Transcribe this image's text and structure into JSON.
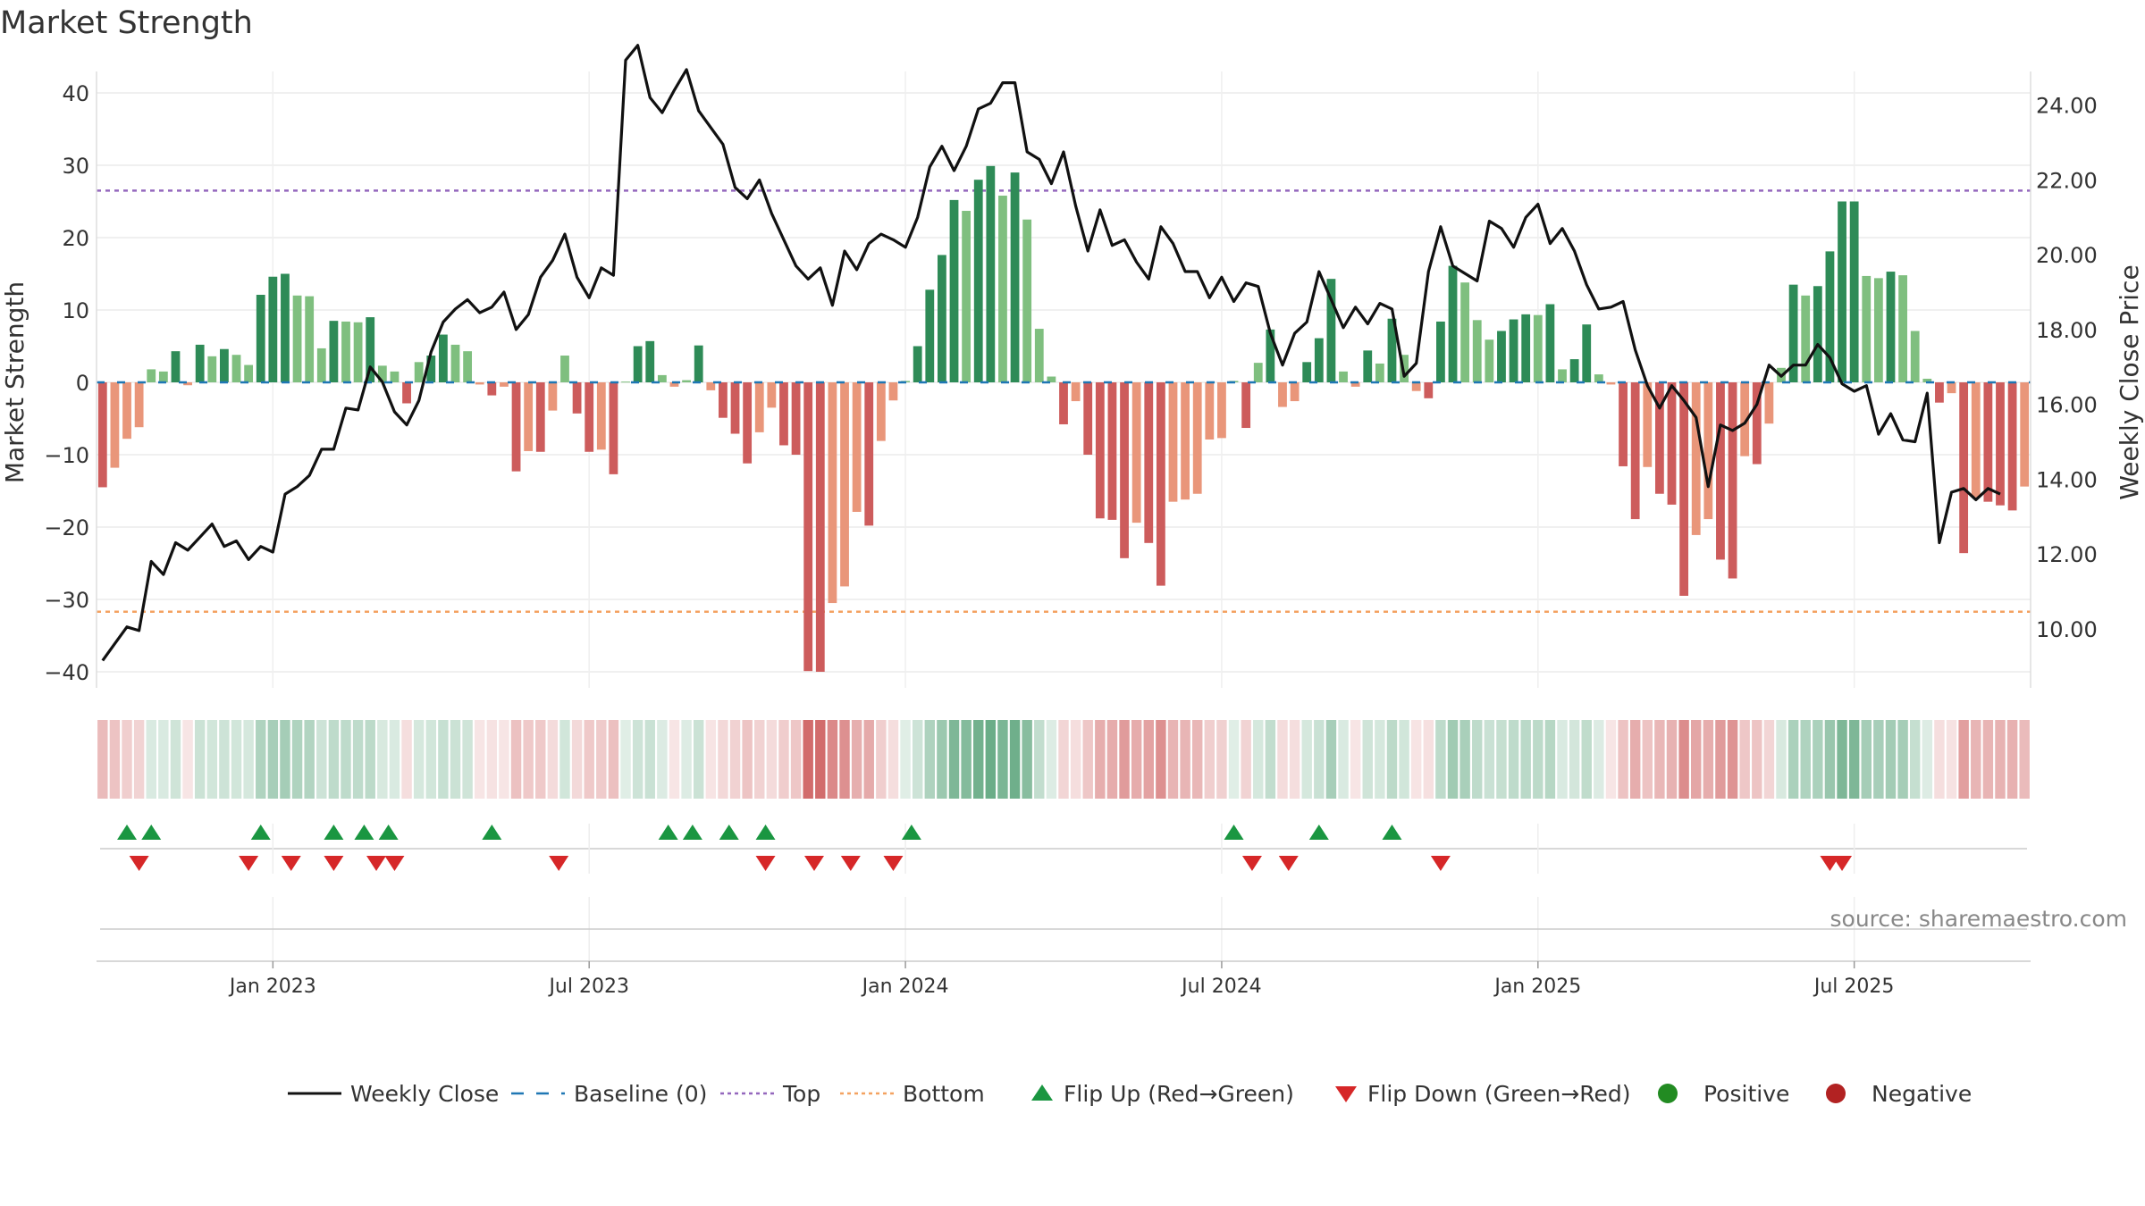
{
  "title": "Market Strength",
  "source": "source: sharemaestro.com",
  "colors": {
    "line": "#111111",
    "baseline": "#1f77b4",
    "top": "#9467bd",
    "bottom": "#f4a261",
    "green_dark": "#2e8b57",
    "green_light": "#7fbf7f",
    "red_dark": "#cd5c5c",
    "red_light": "#e9967a",
    "flip_up": "#1a9641",
    "flip_down": "#d62728",
    "positive": "#228b22",
    "negative": "#b22222"
  },
  "chart_data": {
    "type": "bar+line",
    "title": "Market Strength",
    "ylabel_left": "Market Strength",
    "ylabel_right": "Weekly Close Price",
    "ylim_left": [
      -44,
      44
    ],
    "ylim_right": [
      8.42,
      24.9
    ],
    "yticks_left": [
      "40",
      "30",
      "20",
      "10",
      "0",
      "−10",
      "−20",
      "−30",
      "−40"
    ],
    "yticks_right": [
      "24.00",
      "22.00",
      "20.00",
      "18.00",
      "16.00",
      "14.00",
      "12.00",
      "10.00"
    ],
    "yticks_left_values": [
      40,
      30,
      20,
      10,
      0,
      -10,
      -20,
      -30,
      -40
    ],
    "yticks_right_values": [
      24,
      22,
      20,
      18,
      16,
      14,
      12,
      10
    ],
    "x_ticks": [
      "Jan 2023",
      "Jul 2023",
      "Jan 2024",
      "Jul 2024",
      "Jan 2025",
      "Jul 2025"
    ],
    "x_tick_weeks": [
      14.5,
      40.5,
      66.5,
      92.5,
      118.5,
      144.5
    ],
    "grid": true,
    "top_line": 26.5,
    "bottom_line": -31.7,
    "strength": [
      -14.5,
      -11.8,
      -7.8,
      -6.2,
      1.8,
      1.5,
      4.3,
      -0.4,
      5.2,
      3.6,
      4.6,
      3.8,
      2.4,
      12.1,
      14.6,
      15.0,
      12.0,
      11.9,
      4.7,
      8.5,
      8.4,
      8.3,
      9.0,
      2.3,
      1.5,
      -2.9,
      2.8,
      3.7,
      6.6,
      5.2,
      4.3,
      -0.3,
      -1.8,
      -0.6,
      -12.3,
      -9.5,
      -9.6,
      -3.9,
      3.7,
      -4.3,
      -9.6,
      -9.3,
      -12.7,
      0.1,
      5.0,
      5.7,
      1.0,
      -0.6,
      0.3,
      5.1,
      -1.1,
      -4.9,
      -7.1,
      -11.2,
      -6.9,
      -3.5,
      -8.7,
      -10.0,
      -39.9,
      -40.0,
      -30.5,
      -28.2,
      -17.9,
      -19.8,
      -8.1,
      -2.5,
      0.2,
      5.0,
      12.8,
      17.6,
      25.2,
      23.7,
      28.0,
      29.9,
      25.8,
      29.0,
      22.5,
      7.4,
      0.8,
      -5.8,
      -2.6,
      -10.0,
      -18.8,
      -19.0,
      -24.3,
      -19.4,
      -22.2,
      -28.1,
      -16.5,
      -16.2,
      -15.4,
      -7.9,
      -7.7,
      0.2,
      -6.3,
      2.7,
      7.3,
      -3.4,
      -2.6,
      2.8,
      6.1,
      14.3,
      1.5,
      -0.6,
      4.4,
      2.6,
      8.8,
      3.8,
      -1.2,
      -2.2,
      8.4,
      16.1,
      13.8,
      8.6,
      5.9,
      7.1,
      8.7,
      9.4,
      9.3,
      10.8,
      1.8,
      3.2,
      8.0,
      1.1,
      -0.3,
      -11.6,
      -18.9,
      -11.7,
      -15.4,
      -16.9,
      -29.5,
      -21.1,
      -18.9,
      -24.5,
      -27.1,
      -10.2,
      -11.3,
      -5.7,
      2.0,
      13.5,
      12.0,
      13.3,
      18.1,
      25.0,
      25.0,
      14.7,
      14.4,
      15.3,
      14.8,
      7.1,
      0.5,
      -2.8,
      -1.5,
      -23.6,
      -15.9,
      -16.5,
      -17.0,
      -17.7,
      -14.4
    ],
    "close": [
      9.15,
      9.6,
      10.05,
      9.95,
      11.8,
      11.45,
      12.3,
      12.1,
      12.45,
      12.8,
      12.2,
      12.35,
      11.85,
      12.2,
      12.05,
      13.6,
      13.8,
      14.1,
      14.8,
      14.8,
      15.9,
      15.85,
      17.0,
      16.6,
      15.8,
      15.45,
      16.1,
      17.4,
      18.2,
      18.55,
      18.8,
      18.45,
      18.6,
      19.0,
      18.0,
      18.4,
      19.4,
      19.85,
      20.55,
      19.4,
      18.85,
      19.65,
      19.45,
      25.2,
      25.6,
      24.2,
      23.8,
      24.4,
      24.95,
      23.85,
      23.4,
      22.95,
      21.8,
      21.5,
      22.0,
      21.1,
      20.4,
      19.7,
      19.35,
      19.65,
      18.65,
      20.1,
      19.6,
      20.3,
      20.55,
      20.4,
      20.2,
      21.0,
      22.35,
      22.9,
      22.25,
      22.9,
      23.9,
      24.05,
      24.6,
      24.6,
      22.75,
      22.55,
      21.9,
      22.75,
      21.3,
      20.1,
      21.2,
      20.25,
      20.4,
      19.8,
      19.35,
      20.75,
      20.3,
      19.55,
      19.55,
      18.85,
      19.4,
      18.75,
      19.25,
      19.15,
      17.9,
      17.05,
      17.9,
      18.2,
      19.55,
      18.8,
      18.05,
      18.6,
      18.15,
      18.7,
      18.55,
      16.75,
      17.1,
      19.55,
      20.75,
      19.7,
      19.5,
      19.3,
      20.9,
      20.7,
      20.2,
      21.0,
      21.35,
      20.3,
      20.7,
      20.1,
      19.2,
      18.55,
      18.6,
      18.75,
      17.45,
      16.5,
      15.9,
      16.5,
      16.1,
      15.65,
      13.8,
      15.45,
      15.3,
      15.5,
      16.0,
      17.05,
      16.75,
      17.05,
      17.05,
      17.6,
      17.25,
      16.55,
      16.35,
      16.5,
      15.2,
      15.75,
      15.05,
      15.0,
      16.3,
      12.3,
      13.65,
      13.75,
      13.45,
      13.75,
      13.6
    ],
    "flip_up_weeks": [
      2.5,
      4.5,
      13.5,
      19.5,
      22,
      24,
      32.5,
      47,
      49,
      52,
      55,
      67,
      93.5,
      100.5,
      106.5
    ],
    "flip_down_weeks": [
      3.5,
      12.5,
      16,
      19.5,
      23,
      24.5,
      38,
      55,
      59,
      62,
      65.5,
      95,
      98,
      110.5,
      142.5,
      143.5
    ],
    "legend": [
      "Weekly Close",
      "Baseline (0)",
      "Top",
      "Bottom",
      "Flip Up (Red→Green)",
      "Flip Down (Green→Red)",
      "Positive",
      "Negative"
    ]
  }
}
